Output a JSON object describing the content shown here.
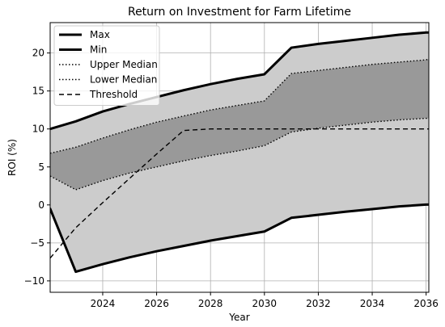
{
  "chart_data": {
    "type": "area",
    "title": "Return on Investment for Farm Lifetime",
    "xlabel": "Year",
    "ylabel": "ROI (%)",
    "xlim": [
      2022.05,
      2036.1
    ],
    "ylim": [
      -11.5,
      24.0
    ],
    "xticks": [
      2024,
      2026,
      2028,
      2030,
      2032,
      2034,
      2036
    ],
    "yticks": [
      -10,
      -5,
      0,
      5,
      10,
      15,
      20
    ],
    "grid": true,
    "legend_position": "upper-left",
    "x": [
      2022.05,
      2023,
      2024,
      2025,
      2026,
      2027,
      2028,
      2029,
      2030,
      2031,
      2032,
      2033,
      2034,
      2035,
      2036,
      2036.1
    ],
    "series": [
      {
        "name": "Max",
        "style": "solid-thick",
        "values": [
          10.0,
          11.0,
          12.3,
          13.3,
          14.2,
          15.1,
          15.9,
          16.6,
          17.2,
          20.7,
          21.2,
          21.6,
          22.0,
          22.4,
          22.7,
          22.7
        ]
      },
      {
        "name": "Min",
        "style": "solid-thick",
        "values": [
          -0.5,
          -8.8,
          -7.8,
          -6.9,
          -6.1,
          -5.4,
          -4.7,
          -4.1,
          -3.5,
          -1.7,
          -1.3,
          -0.9,
          -0.55,
          -0.2,
          0.05,
          0.05
        ]
      },
      {
        "name": "Upper Median",
        "style": "dotted",
        "values": [
          6.8,
          7.6,
          8.8,
          9.9,
          10.9,
          11.7,
          12.5,
          13.1,
          13.7,
          17.3,
          17.7,
          18.1,
          18.5,
          18.8,
          19.1,
          19.2
        ]
      },
      {
        "name": "Lower Median",
        "style": "dotted",
        "values": [
          3.8,
          2.0,
          3.2,
          4.2,
          5.0,
          5.8,
          6.5,
          7.1,
          7.8,
          9.6,
          10.1,
          10.5,
          10.9,
          11.2,
          11.4,
          11.4
        ]
      },
      {
        "name": "Threshold",
        "style": "dashed",
        "values": [
          -7.0,
          -3.0,
          0.3,
          3.5,
          6.7,
          9.8,
          10.0,
          10.0,
          10.0,
          10.0,
          10.0,
          10.0,
          10.0,
          10.0,
          10.0,
          10.0
        ]
      }
    ],
    "colors": {
      "outer_band": "#cccccc",
      "inner_band": "#999999",
      "line": "#000000",
      "grid": "#b0b0b0"
    }
  }
}
